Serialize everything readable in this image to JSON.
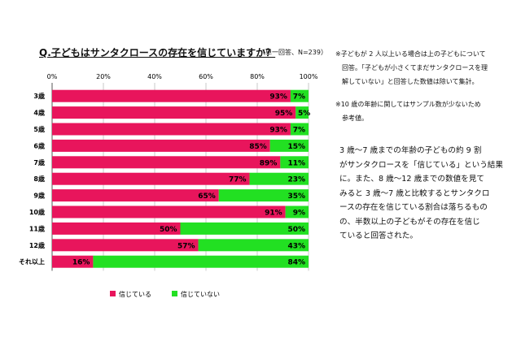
{
  "page": {
    "summary_lines": [
      "3 歳〜7 歳までの年齢の子どもの約 9 割",
      "がサンタクロースを「信じている」という結果",
      "に。また、8 歳〜12 歳までの数値を見て",
      "みると 3 歳〜7 歳と比較するとサンタクロ",
      "ースの存在を信じている割合は落ちるもの",
      "の、半数以上の子どもがその存在を信じ",
      "ていると回答された。"
    ],
    "notes": [
      [
        "※子どもが 2 人以上いる場合は上の子どもについて",
        "　回答。「子どもが小さくてまだサンタクロースを理",
        "　解していない」と回答した数値は除いて集計。"
      ],
      [
        "※10 歳の年齢に関してはサンプル数が少ないため",
        "　参考値。"
      ]
    ]
  },
  "chart_data": {
    "type": "bar",
    "orientation": "horizontal",
    "stacked": true,
    "title": "Q.子どもはサンタクロースの存在を信じていますか？",
    "subtitle": "（単一回答、N=239）",
    "categories": [
      "3歳",
      "4歳",
      "5歳",
      "6歳",
      "7歳",
      "8歳",
      "9歳",
      "10歳",
      "11歳",
      "12歳",
      "それ以上"
    ],
    "series": [
      {
        "name": "信じている",
        "color": "#E8155C",
        "values": [
          93,
          95,
          93,
          85,
          89,
          77,
          65,
          91,
          50,
          57,
          16
        ]
      },
      {
        "name": "信じていない",
        "color": "#22E022",
        "values": [
          7,
          5,
          7,
          15,
          11,
          23,
          35,
          9,
          50,
          43,
          84
        ]
      }
    ],
    "xlim": [
      0,
      100
    ],
    "x_ticks": [
      "0%",
      "20%",
      "40%",
      "60%",
      "80%",
      "100%"
    ],
    "value_suffix": "%",
    "grid": true,
    "legend_position": "bottom"
  }
}
